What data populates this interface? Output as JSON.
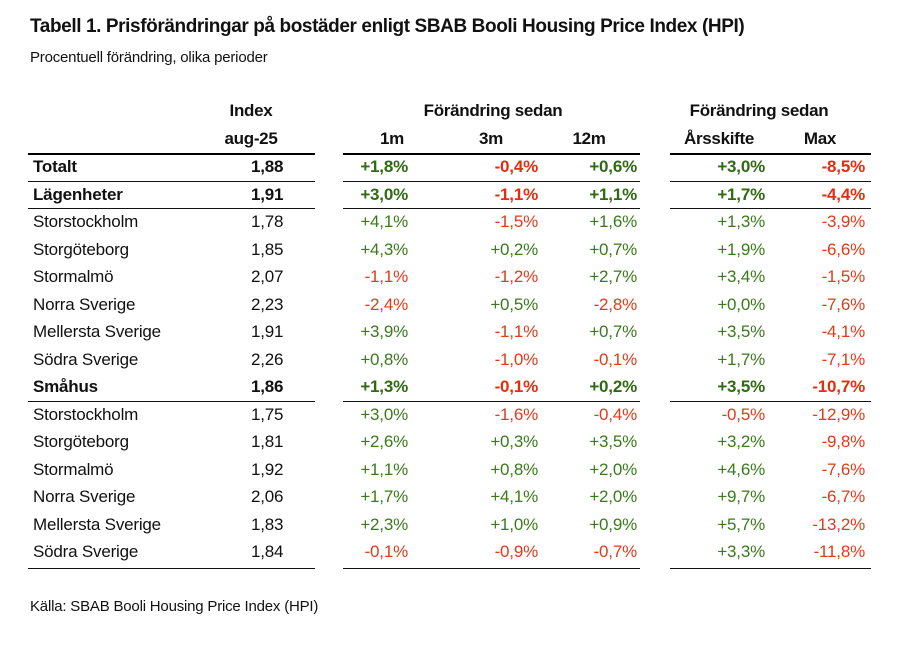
{
  "title": "Tabell 1. Prisförändringar på bostäder enligt SBAB Booli Housing Price Index (HPI)",
  "subtitle": "Procentuell förändring, olika perioder",
  "source": "Källa: SBAB Booli Housing Price Index (HPI)",
  "colors": {
    "positive": "#3a7a1c",
    "negative": "#e03b1a",
    "text": "#111111"
  },
  "header": {
    "index_top": "Index",
    "index_bottom": "aug-25",
    "group1": "Förändring sedan",
    "group2": "Förändring sedan",
    "cols": [
      "1m",
      "3m",
      "12m",
      "Årsskifte",
      "Max"
    ]
  },
  "chart_data": {
    "type": "table",
    "title": "Tabell 1. Prisförändringar på bostäder enligt SBAB Booli Housing Price Index (HPI)",
    "subtitle": "Procentuell förändring, olika perioder",
    "columns": [
      "Index aug-25",
      "1m",
      "3m",
      "12m",
      "Årsskifte",
      "Max"
    ],
    "rows": [
      {
        "label": "Totalt",
        "bold": true,
        "index": "1,88",
        "values": [
          "+1,8%",
          "-0,4%",
          "+0,6%",
          "+3,0%",
          "-8,5%"
        ]
      },
      {
        "label": "Lägenheter",
        "bold": true,
        "index": "1,91",
        "values": [
          "+3,0%",
          "-1,1%",
          "+1,1%",
          "+1,7%",
          "-4,4%"
        ]
      },
      {
        "label": "Storstockholm",
        "bold": false,
        "index": "1,78",
        "values": [
          "+4,1%",
          "-1,5%",
          "+1,6%",
          "+1,3%",
          "-3,9%"
        ]
      },
      {
        "label": "Storgöteborg",
        "bold": false,
        "index": "1,85",
        "values": [
          "+4,3%",
          "+0,2%",
          "+0,7%",
          "+1,9%",
          "-6,6%"
        ]
      },
      {
        "label": "Stormalmö",
        "bold": false,
        "index": "2,07",
        "values": [
          "-1,1%",
          "-1,2%",
          "+2,7%",
          "+3,4%",
          "-1,5%"
        ]
      },
      {
        "label": "Norra Sverige",
        "bold": false,
        "index": "2,23",
        "values": [
          "-2,4%",
          "+0,5%",
          "-2,8%",
          "+0,0%",
          "-7,6%"
        ]
      },
      {
        "label": "Mellersta Sverige",
        "bold": false,
        "index": "1,91",
        "values": [
          "+3,9%",
          "-1,1%",
          "+0,7%",
          "+3,5%",
          "-4,1%"
        ]
      },
      {
        "label": "Södra Sverige",
        "bold": false,
        "index": "2,26",
        "values": [
          "+0,8%",
          "-1,0%",
          "-0,1%",
          "+1,7%",
          "-7,1%"
        ]
      },
      {
        "label": "Småhus",
        "bold": true,
        "index": "1,86",
        "values": [
          "+1,3%",
          "-0,1%",
          "+0,2%",
          "+3,5%",
          "-10,7%"
        ]
      },
      {
        "label": "Storstockholm",
        "bold": false,
        "index": "1,75",
        "values": [
          "+3,0%",
          "-1,6%",
          "-0,4%",
          "-0,5%",
          "-12,9%"
        ]
      },
      {
        "label": "Storgöteborg",
        "bold": false,
        "index": "1,81",
        "values": [
          "+2,6%",
          "+0,3%",
          "+3,5%",
          "+3,2%",
          "-9,8%"
        ]
      },
      {
        "label": "Stormalmö",
        "bold": false,
        "index": "1,92",
        "values": [
          "+1,1%",
          "+0,8%",
          "+2,0%",
          "+4,6%",
          "-7,6%"
        ]
      },
      {
        "label": "Norra Sverige",
        "bold": false,
        "index": "2,06",
        "values": [
          "+1,7%",
          "+4,1%",
          "+2,0%",
          "+9,7%",
          "-6,7%"
        ]
      },
      {
        "label": "Mellersta Sverige",
        "bold": false,
        "index": "1,83",
        "values": [
          "+2,3%",
          "+1,0%",
          "+0,9%",
          "+5,7%",
          "-13,2%"
        ]
      },
      {
        "label": "Södra Sverige",
        "bold": false,
        "index": "1,84",
        "values": [
          "-0,1%",
          "-0,9%",
          "-0,7%",
          "+3,3%",
          "-11,8%"
        ]
      }
    ]
  }
}
